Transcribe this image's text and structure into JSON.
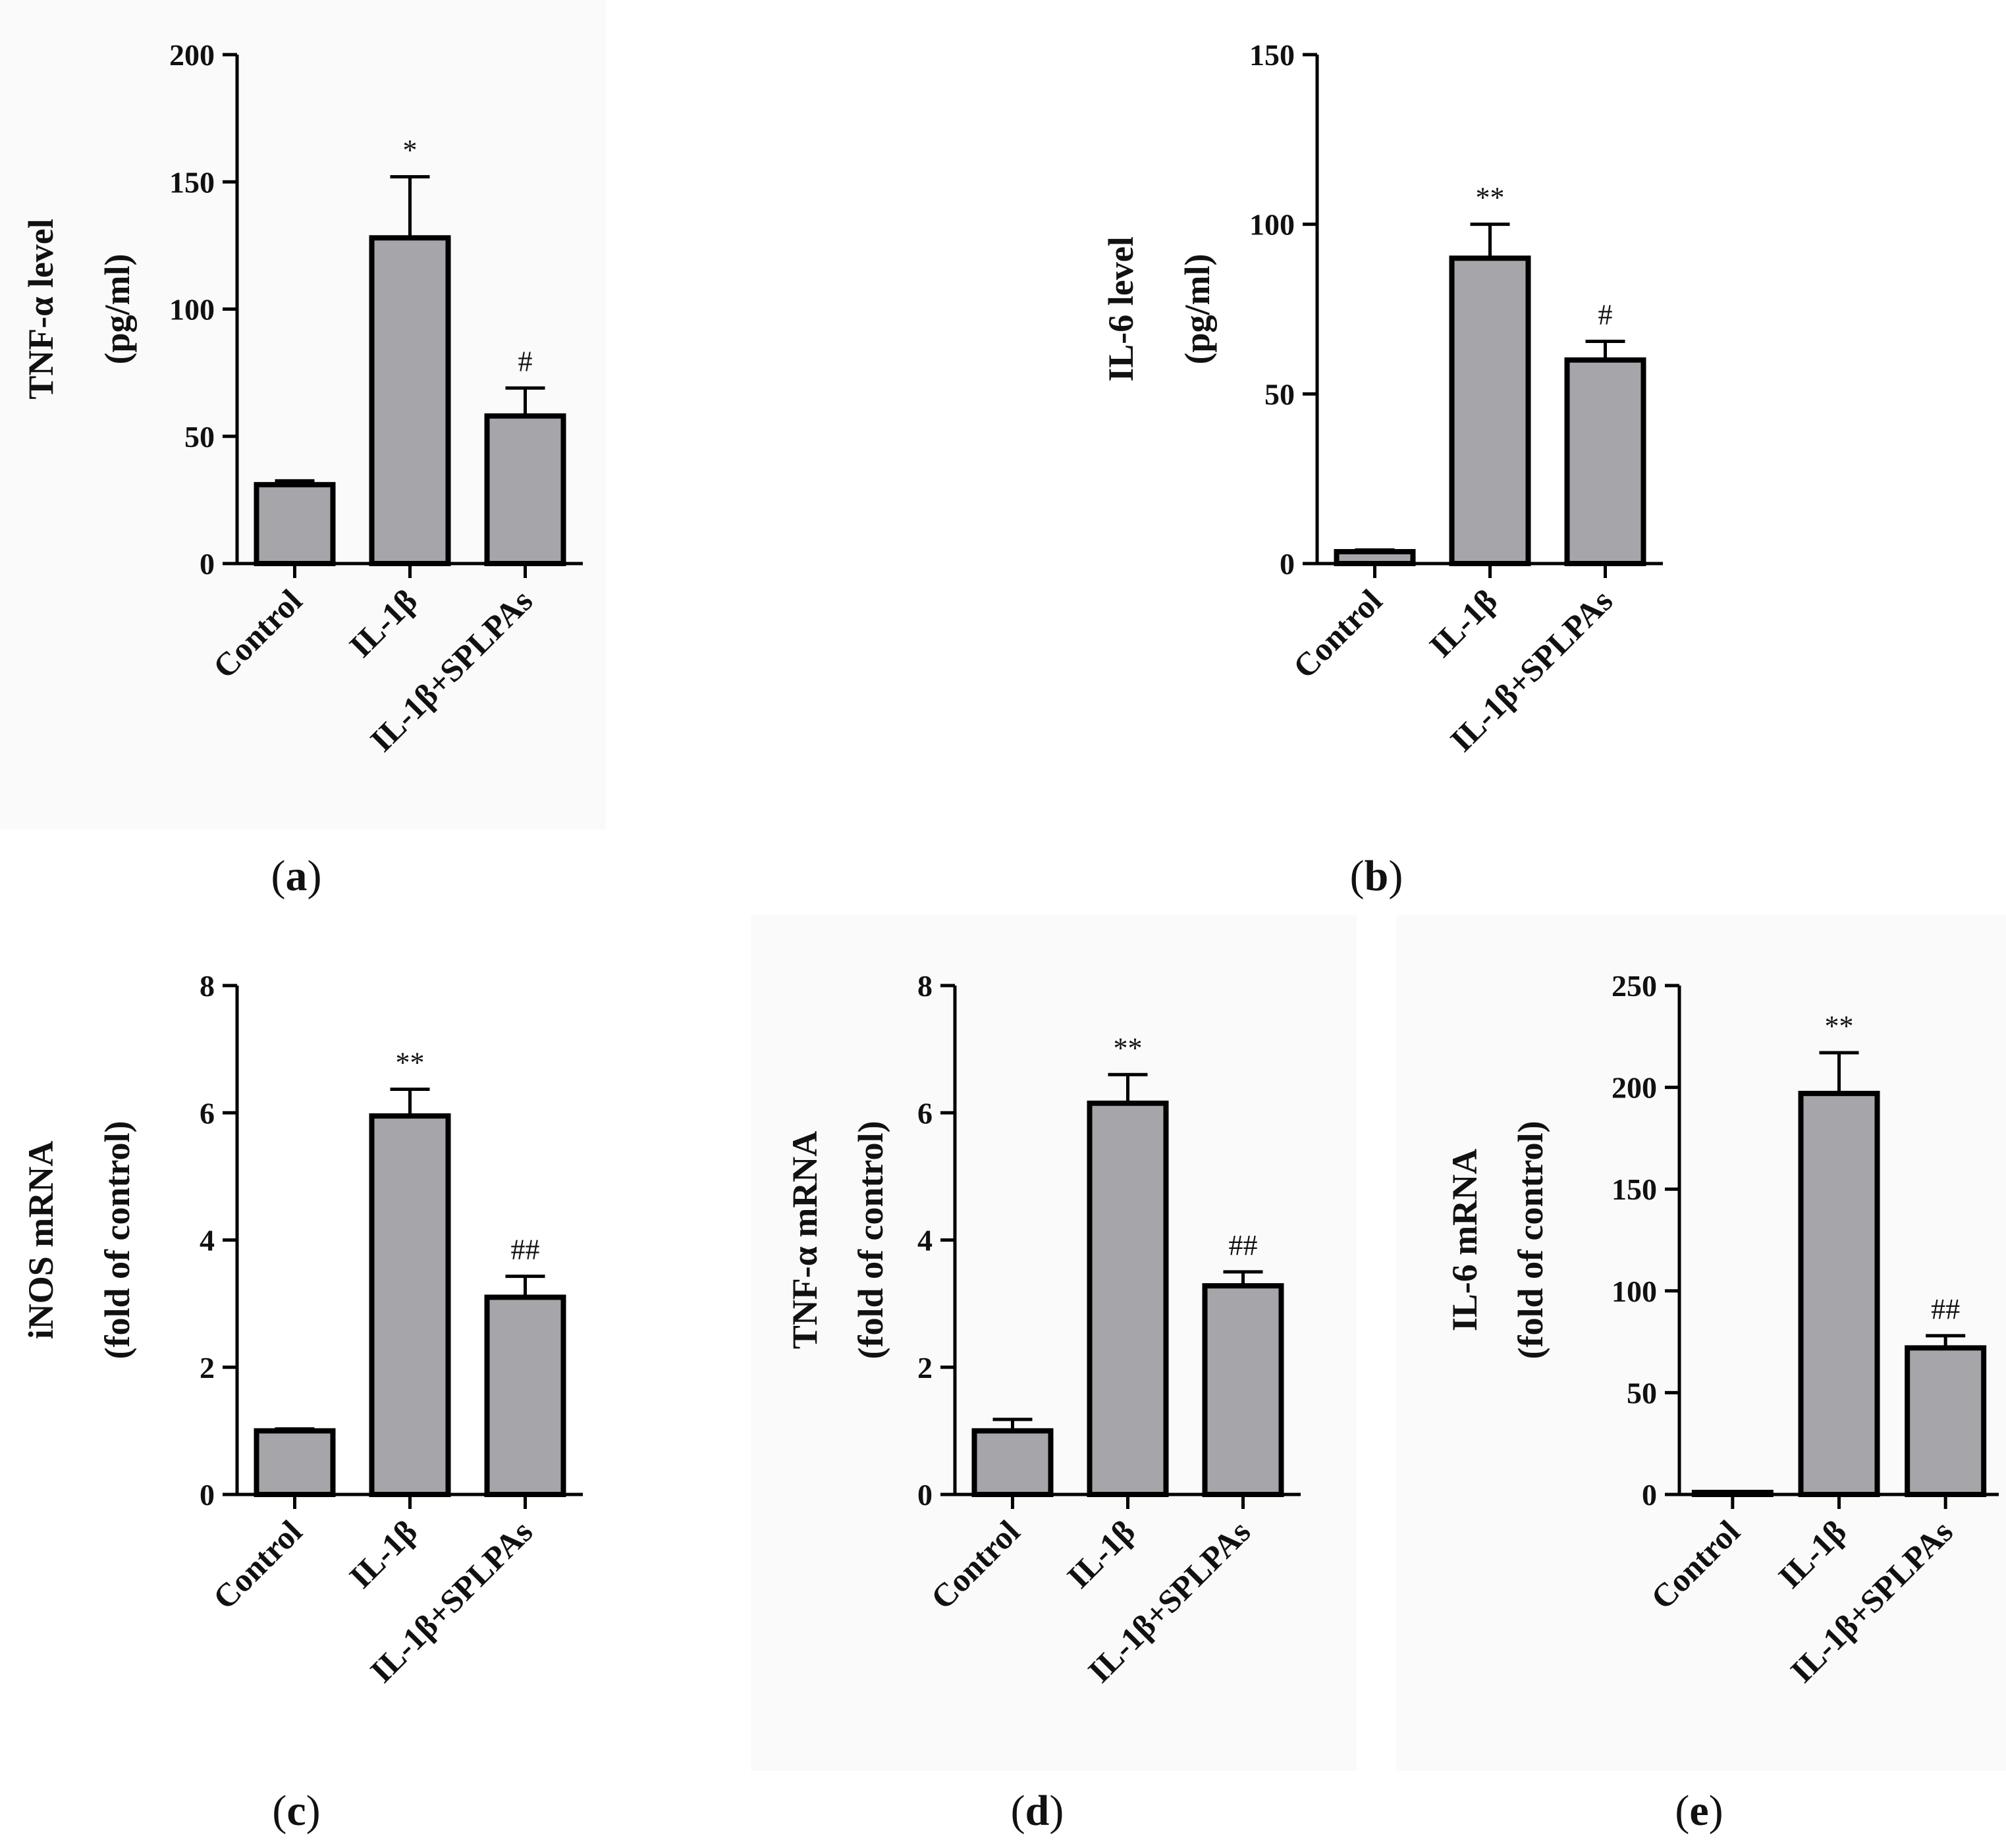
{
  "chart_data": [
    {
      "id": "a",
      "type": "bar",
      "panel_label": "a",
      "ylabel_line1": "TNF-α level",
      "ylabel_line2": "(pg/ml)",
      "categories": [
        "Control",
        "IL-1β",
        "IL-1β+SPLPAs"
      ],
      "values": [
        31,
        128,
        58
      ],
      "errors": [
        1.5,
        24,
        11
      ],
      "significance": [
        "",
        "*",
        "#"
      ],
      "ylim": [
        0,
        200
      ],
      "yticks": [
        0,
        50,
        100,
        150,
        200
      ]
    },
    {
      "id": "b",
      "type": "bar",
      "panel_label": "b",
      "ylabel_line1": "IL-6 level",
      "ylabel_line2": "(pg/ml)",
      "categories": [
        "Control",
        "IL-1β",
        "IL-1β+SPLPAs"
      ],
      "values": [
        3.5,
        90,
        60
      ],
      "errors": [
        0.5,
        10,
        5.5
      ],
      "significance": [
        "",
        "**",
        "#"
      ],
      "ylim": [
        0,
        150
      ],
      "yticks": [
        0,
        50,
        100,
        150
      ]
    },
    {
      "id": "c",
      "type": "bar",
      "panel_label": "c",
      "ylabel_line1": "iNOS mRNA",
      "ylabel_line2": "(fold of control)",
      "categories": [
        "Control",
        "IL-1β",
        "IL-1β+SPLPAs"
      ],
      "values": [
        1.0,
        5.95,
        3.1
      ],
      "errors": [
        0.03,
        0.42,
        0.33
      ],
      "significance": [
        "",
        "**",
        "##"
      ],
      "ylim": [
        0,
        8
      ],
      "yticks": [
        0,
        2,
        4,
        6,
        8
      ]
    },
    {
      "id": "d",
      "type": "bar",
      "panel_label": "d",
      "ylabel_line1": "TNF-α mRNA",
      "ylabel_line2": "(fold of control)",
      "categories": [
        "Control",
        "IL-1β",
        "IL-1β+SPLPAs"
      ],
      "values": [
        1.0,
        6.15,
        3.28
      ],
      "errors": [
        0.18,
        0.45,
        0.22
      ],
      "significance": [
        "",
        "**",
        "##"
      ],
      "ylim": [
        0,
        8
      ],
      "yticks": [
        0,
        2,
        4,
        6,
        8
      ]
    },
    {
      "id": "e",
      "type": "bar",
      "panel_label": "e",
      "ylabel_line1": "IL-6 mRNA",
      "ylabel_line2": "(fold of control)",
      "categories": [
        "Control",
        "IL-1β",
        "IL-1β+SPLPAs"
      ],
      "values": [
        1.0,
        197,
        72
      ],
      "errors": [
        0.5,
        20,
        6
      ],
      "significance": [
        "",
        "**",
        "##"
      ],
      "ylim": [
        0,
        250
      ],
      "yticks": [
        0,
        50,
        100,
        150,
        200,
        250
      ]
    }
  ]
}
